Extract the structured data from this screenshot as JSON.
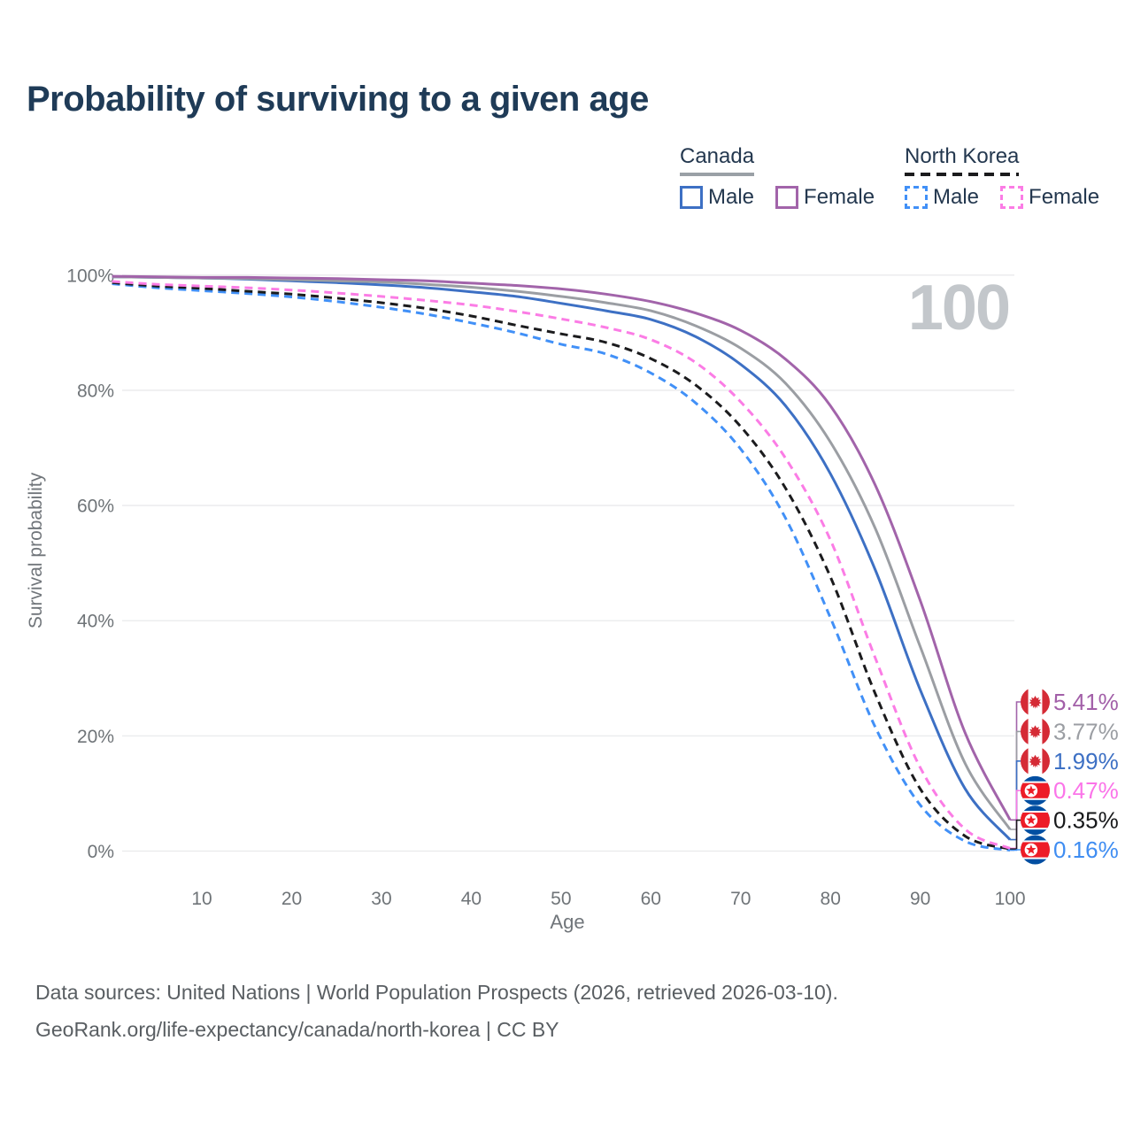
{
  "title": "Probability of surviving to a given age",
  "watermark_age": "100",
  "legend": {
    "groups": [
      {
        "name": "Canada",
        "line_color": "#9aa0a6",
        "line_style": "solid",
        "items": [
          {
            "label": "Male",
            "color": "#3d70c4",
            "style": "solid"
          },
          {
            "label": "Female",
            "color": "#a264aa",
            "style": "solid"
          }
        ]
      },
      {
        "name": "North Korea",
        "line_color": "#1b1b1d",
        "line_style": "dashed",
        "items": [
          {
            "label": "Male",
            "color": "#4190f7",
            "style": "dashed"
          },
          {
            "label": "Female",
            "color": "#fb7ce5",
            "style": "dashed"
          }
        ]
      }
    ]
  },
  "chart_data": {
    "type": "line",
    "title": "Probability of surviving to a given age",
    "xlabel": "Age",
    "ylabel": "Survival probability",
    "xlim": [
      0,
      100
    ],
    "ylim": [
      0,
      100
    ],
    "x_ticks": [
      10,
      20,
      30,
      40,
      50,
      60,
      70,
      80,
      90,
      100
    ],
    "y_ticks": [
      0,
      20,
      40,
      60,
      80,
      100
    ],
    "y_tick_suffix": "%",
    "grid": true,
    "legend_position": "top-right",
    "ages": [
      0,
      5,
      10,
      15,
      20,
      25,
      30,
      35,
      40,
      45,
      50,
      55,
      60,
      65,
      70,
      75,
      80,
      85,
      90,
      95,
      100
    ],
    "series": [
      {
        "name": "Canada Female",
        "country": "Canada",
        "sex": "Female",
        "color": "#a264aa",
        "dash": false,
        "flag": "canada",
        "end_label": "5.41%",
        "end_label_color": "#a25fa8",
        "values": [
          99.8,
          99.7,
          99.6,
          99.6,
          99.5,
          99.4,
          99.2,
          99.0,
          98.6,
          98.2,
          97.6,
          96.7,
          95.4,
          93.4,
          90.4,
          85.4,
          77.3,
          63.5,
          43.5,
          20.5,
          5.41
        ]
      },
      {
        "name": "Canada Both sexes",
        "country": "Canada",
        "sex": "Both",
        "color": "#9b9ea3",
        "dash": false,
        "flag": "canada",
        "end_label": "3.77%",
        "end_label_color": "#9b9ea3",
        "values": [
          99.7,
          99.6,
          99.5,
          99.4,
          99.2,
          99.0,
          98.8,
          98.4,
          97.9,
          97.2,
          96.3,
          95.2,
          93.8,
          91.2,
          87.3,
          81.2,
          71.0,
          56.0,
          35.5,
          15.2,
          3.77
        ]
      },
      {
        "name": "Canada Male",
        "country": "Canada",
        "sex": "Male",
        "color": "#3d70c4",
        "dash": false,
        "flag": "canada",
        "end_label": "1.99%",
        "end_label_color": "#3d70c4",
        "values": [
          99.7,
          99.6,
          99.5,
          99.3,
          99.0,
          98.7,
          98.3,
          97.8,
          97.1,
          96.3,
          95.1,
          93.8,
          92.3,
          89.3,
          84.5,
          77.3,
          65.5,
          48.8,
          28.0,
          10.8,
          1.99
        ]
      },
      {
        "name": "North Korea Female",
        "country": "North Korea",
        "sex": "Female",
        "color": "#fb7ce5",
        "dash": true,
        "flag": "north-korea",
        "end_label": "0.47%",
        "end_label_color": "#fb74e9",
        "values": [
          98.9,
          98.4,
          98.1,
          97.8,
          97.4,
          96.9,
          96.3,
          95.6,
          94.8,
          93.7,
          92.4,
          90.9,
          88.8,
          84.8,
          78.0,
          68.2,
          54.0,
          33.5,
          14.5,
          3.8,
          0.47
        ]
      },
      {
        "name": "North Korea Both sexes",
        "country": "North Korea",
        "sex": "Both",
        "color": "#1b1b1d",
        "dash": true,
        "flag": "north-korea",
        "end_label": "0.35%",
        "end_label_color": "#17181a",
        "values": [
          98.7,
          98.1,
          97.7,
          97.2,
          96.7,
          96.0,
          95.2,
          94.2,
          92.9,
          91.3,
          89.8,
          88.3,
          85.5,
          80.9,
          73.7,
          63.0,
          47.6,
          27.3,
          10.8,
          2.6,
          0.35
        ]
      },
      {
        "name": "North Korea Male",
        "country": "North Korea",
        "sex": "Male",
        "color": "#4190f7",
        "dash": true,
        "flag": "north-korea",
        "end_label": "0.16%",
        "end_label_color": "#3f8df2",
        "values": [
          98.5,
          97.8,
          97.3,
          96.8,
          96.2,
          95.4,
          94.4,
          93.2,
          91.7,
          90.0,
          88.0,
          86.3,
          83.0,
          77.8,
          69.8,
          57.8,
          40.5,
          21.5,
          8.0,
          1.7,
          0.16
        ]
      }
    ]
  },
  "footer": {
    "line1": "Data sources: United Nations | World Population Prospects (2026, retrieved 2026-03-10).",
    "line2": "GeoRank.org/life-expectancy/canada/north-korea | CC BY"
  }
}
